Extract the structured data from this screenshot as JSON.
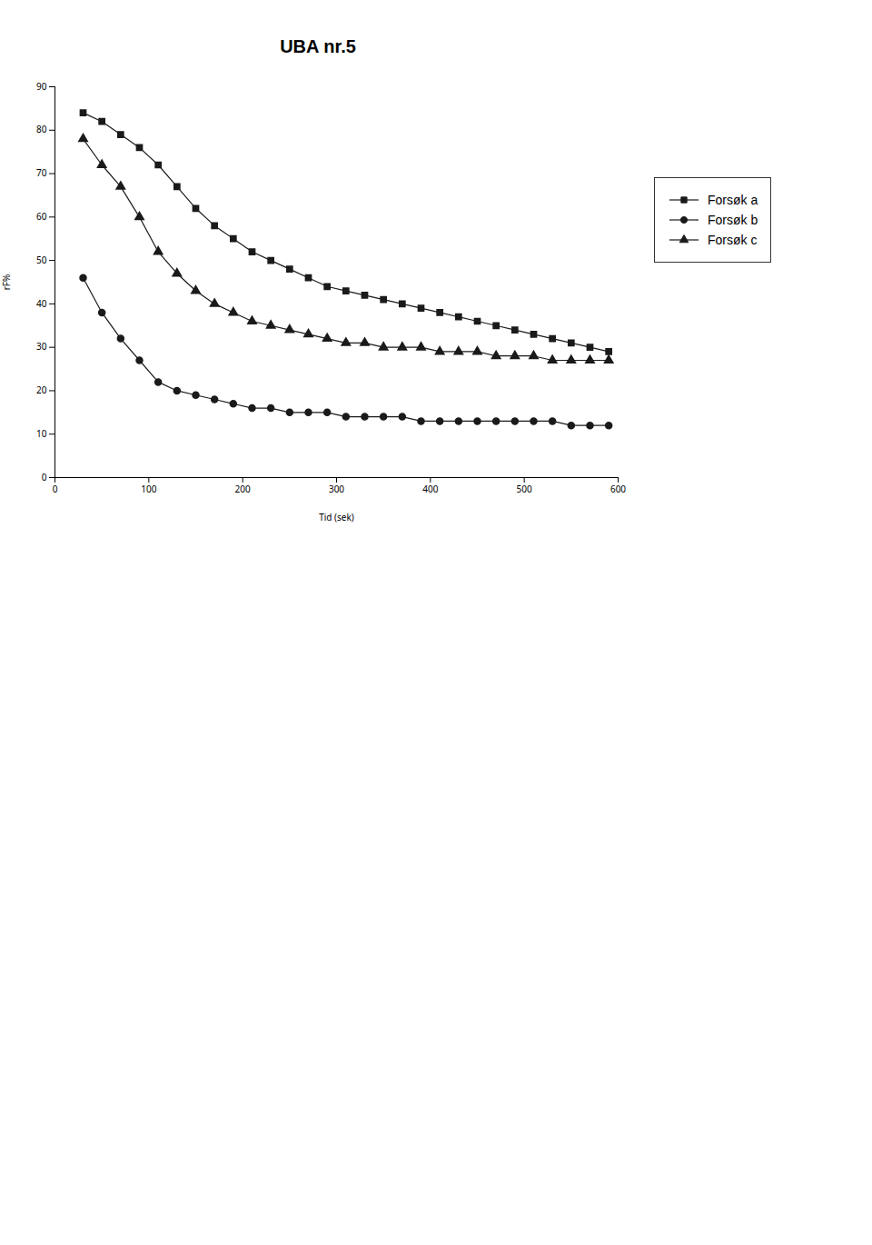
{
  "chart_data": {
    "type": "line",
    "title": "UBA nr.5",
    "xlabel": "Tid (sek)",
    "ylabel": "rF%",
    "xlim": [
      0,
      600
    ],
    "ylim": [
      0,
      90
    ],
    "xticks": [
      0,
      100,
      200,
      300,
      400,
      500,
      600
    ],
    "yticks": [
      0,
      10,
      20,
      30,
      40,
      50,
      60,
      70,
      80,
      90
    ],
    "grid": false,
    "legend": "right",
    "x": [
      30,
      50,
      70,
      90,
      110,
      130,
      150,
      170,
      190,
      210,
      230,
      250,
      270,
      290,
      310,
      330,
      350,
      370,
      390,
      410,
      430,
      450,
      470,
      490,
      510,
      530,
      550,
      570,
      590
    ],
    "series": [
      {
        "name": "Forsøk a",
        "color": "#1a1a1a",
        "marker": "square",
        "values": [
          84,
          82,
          79,
          76,
          72,
          67,
          62,
          58,
          55,
          52,
          50,
          48,
          46,
          44,
          43,
          42,
          41,
          40,
          39,
          38,
          37,
          36,
          35,
          34,
          33,
          32,
          31,
          30,
          29
        ]
      },
      {
        "name": "Forsøk b",
        "color": "#1a1a1a",
        "marker": "circle",
        "values": [
          46,
          38,
          32,
          27,
          22,
          20,
          19,
          18,
          17,
          16,
          16,
          15,
          15,
          15,
          14,
          14,
          14,
          14,
          13,
          13,
          13,
          13,
          13,
          13,
          13,
          13,
          12,
          12,
          12
        ]
      },
      {
        "name": "Forsøk c",
        "color": "#1a1a1a",
        "marker": "triangle",
        "values": [
          78,
          72,
          67,
          60,
          52,
          47,
          43,
          40,
          38,
          36,
          35,
          34,
          33,
          32,
          31,
          31,
          30,
          30,
          30,
          29,
          29,
          29,
          28,
          28,
          28,
          27,
          27,
          27,
          27
        ]
      }
    ]
  }
}
